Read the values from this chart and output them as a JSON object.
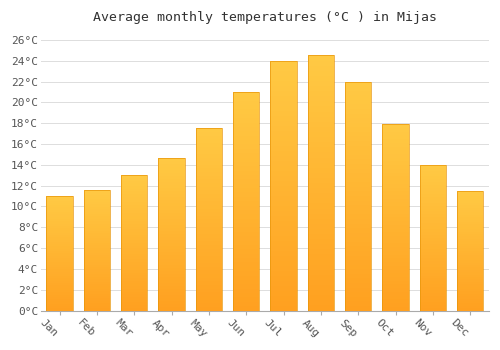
{
  "months": [
    "Jan",
    "Feb",
    "Mar",
    "Apr",
    "May",
    "Jun",
    "Jul",
    "Aug",
    "Sep",
    "Oct",
    "Nov",
    "Dec"
  ],
  "temperatures": [
    11.0,
    11.6,
    13.0,
    14.7,
    17.5,
    21.0,
    24.0,
    24.5,
    22.0,
    17.9,
    14.0,
    11.5
  ],
  "bar_color_top": "#FFCA44",
  "bar_color_bot": "#FFA020",
  "bar_edge_color": "#E8950A",
  "title": "Average monthly temperatures (°C ) in Mijas",
  "ylim": [
    0,
    27
  ],
  "yticks": [
    0,
    2,
    4,
    6,
    8,
    10,
    12,
    14,
    16,
    18,
    20,
    22,
    24,
    26
  ],
  "ytick_labels": [
    "0°C",
    "2°C",
    "4°C",
    "6°C",
    "8°C",
    "10°C",
    "12°C",
    "14°C",
    "16°C",
    "18°C",
    "20°C",
    "22°C",
    "24°C",
    "26°C"
  ],
  "background_color": "#ffffff",
  "grid_color": "#dddddd",
  "title_fontsize": 9.5,
  "tick_fontsize": 8,
  "bar_width": 0.7,
  "xticklabel_rotation": -45,
  "figsize": [
    5.0,
    3.5
  ],
  "dpi": 100
}
